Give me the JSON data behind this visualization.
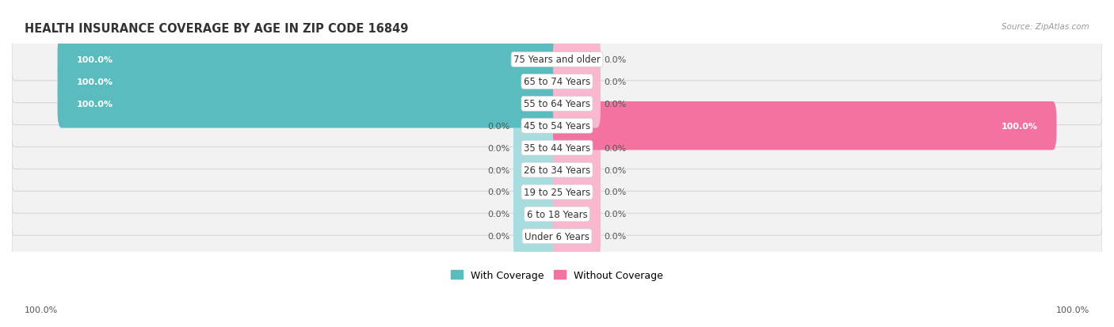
{
  "title": "HEALTH INSURANCE COVERAGE BY AGE IN ZIP CODE 16849",
  "source": "Source: ZipAtlas.com",
  "categories": [
    "Under 6 Years",
    "6 to 18 Years",
    "19 to 25 Years",
    "26 to 34 Years",
    "35 to 44 Years",
    "45 to 54 Years",
    "55 to 64 Years",
    "65 to 74 Years",
    "75 Years and older"
  ],
  "with_coverage": [
    0.0,
    0.0,
    0.0,
    0.0,
    0.0,
    0.0,
    100.0,
    100.0,
    100.0
  ],
  "without_coverage": [
    0.0,
    0.0,
    0.0,
    0.0,
    0.0,
    100.0,
    0.0,
    0.0,
    0.0
  ],
  "color_with": "#5bbcbf",
  "color_without": "#f472a0",
  "color_with_light": "#a8dde0",
  "color_without_light": "#f9b8cf",
  "row_bg_color": "#f2f2f2",
  "row_border_color": "#d8d8d8",
  "title_fontsize": 10.5,
  "label_fontsize": 8.5,
  "legend_fontsize": 9,
  "source_fontsize": 7.5,
  "background_color": "#ffffff",
  "stub_size": 8.0,
  "full_size": 100.0,
  "xlim": 110
}
